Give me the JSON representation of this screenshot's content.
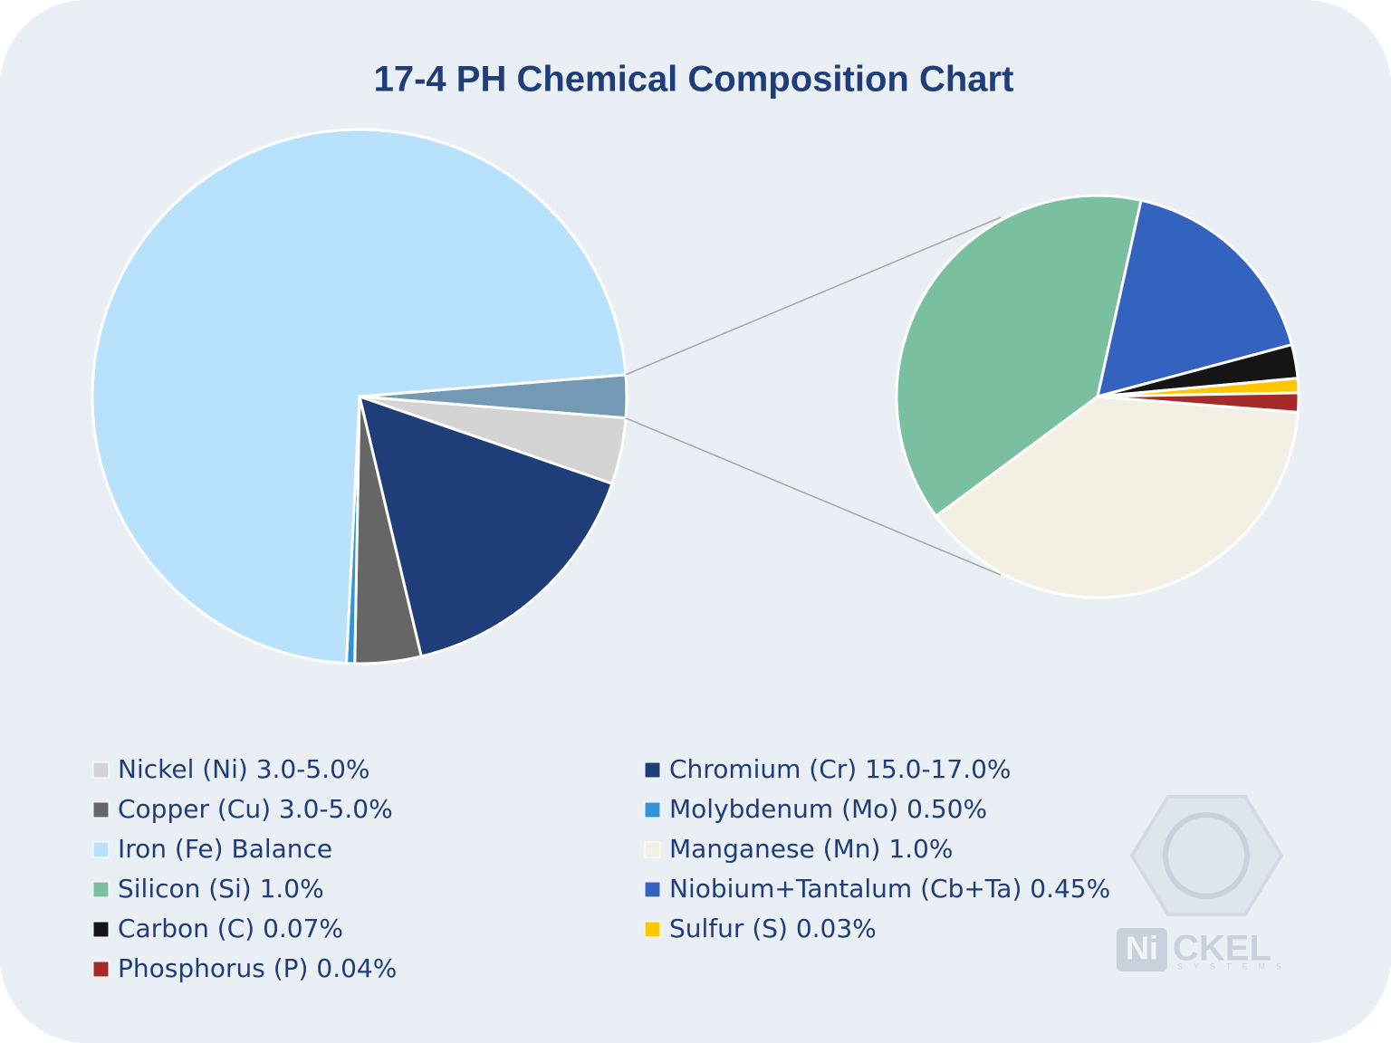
{
  "chart_data": {
    "type": "pie",
    "title": "17-4 PH Chemical Composition Chart",
    "categories": [
      "Nickel (Ni) 3.0-5.0%",
      "Chromium (Cr) 15.0-17.0%",
      "Copper (Cu) 3.0-5.0%",
      "Molybdenum (Mo) 0.50%",
      "Iron (Fe) Balance",
      "Manganese (Mn) 1.0%",
      "Silicon (Si) 1.0%",
      "Niobium+Tantalum (Cb+Ta) 0.45%",
      "Carbon (C) 0.07%",
      "Sulfur (S) 0.03%",
      "Phosphorus (P) 0.04%"
    ],
    "values": [
      4,
      16,
      4,
      0.5,
      72.91,
      1.0,
      1.0,
      0.45,
      0.07,
      0.03,
      0.04
    ],
    "colors": [
      "#d4d4d4",
      "#1f3d78",
      "#666666",
      "#2d95d8",
      "#b8e1fb",
      "#f3efe2",
      "#7abfa0",
      "#3463bf",
      "#151515",
      "#ffc700",
      "#a52a2a"
    ],
    "second_pie": [
      5,
      6,
      7,
      8,
      9,
      10
    ],
    "group_color": "#7499b5",
    "legend": "bottom"
  },
  "logo": {
    "mark": "Ni",
    "name": "CKEL",
    "tagline": "SYSTEMS"
  }
}
